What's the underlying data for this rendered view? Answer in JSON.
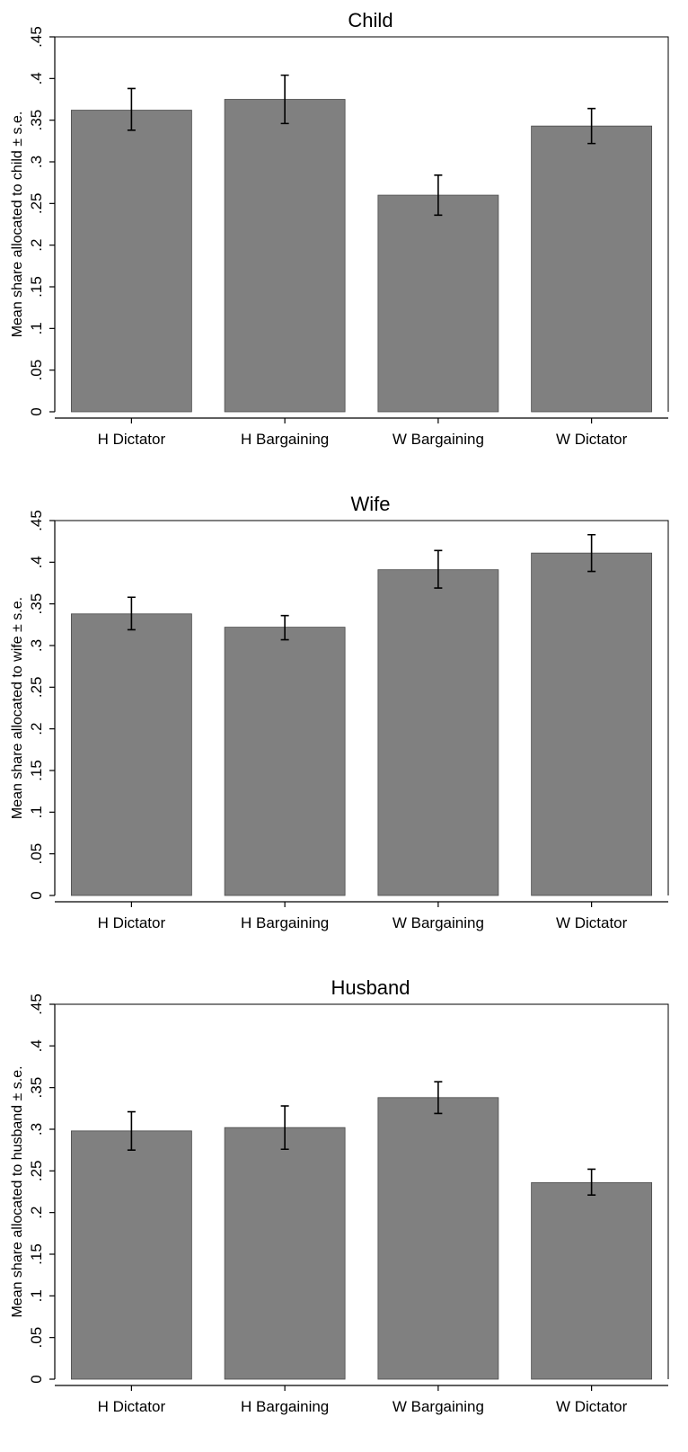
{
  "chart_data": [
    {
      "type": "bar",
      "title": "Child",
      "ylabel": "Mean share allocated to child ± s.e.",
      "categories": [
        "H Dictator",
        "H Bargaining",
        "W Bargaining",
        "W Dictator"
      ],
      "values": [
        0.362,
        0.375,
        0.26,
        0.343
      ],
      "error_low": [
        0.338,
        0.346,
        0.236,
        0.322
      ],
      "error_high": [
        0.388,
        0.404,
        0.284,
        0.364
      ],
      "ylim": [
        0,
        0.45
      ],
      "yticks": [
        0,
        0.05,
        0.1,
        0.15,
        0.2,
        0.25,
        0.3,
        0.35,
        0.4,
        0.45
      ],
      "ytick_labels": [
        "0",
        ".05",
        ".1",
        ".15",
        ".2",
        ".25",
        ".3",
        ".35",
        ".4",
        ".45"
      ],
      "bar_color": "#808080",
      "grid": false
    },
    {
      "type": "bar",
      "title": "Wife",
      "ylabel": "Mean share allocated to wife ± s.e.",
      "categories": [
        "H Dictator",
        "H Bargaining",
        "W Bargaining",
        "W Dictator"
      ],
      "values": [
        0.338,
        0.322,
        0.391,
        0.411
      ],
      "error_low": [
        0.319,
        0.307,
        0.369,
        0.389
      ],
      "error_high": [
        0.358,
        0.336,
        0.414,
        0.433
      ],
      "ylim": [
        0,
        0.45
      ],
      "yticks": [
        0,
        0.05,
        0.1,
        0.15,
        0.2,
        0.25,
        0.3,
        0.35,
        0.4,
        0.45
      ],
      "ytick_labels": [
        "0",
        ".05",
        ".1",
        ".15",
        ".2",
        ".25",
        ".3",
        ".35",
        ".4",
        ".45"
      ],
      "bar_color": "#808080",
      "grid": false
    },
    {
      "type": "bar",
      "title": "Husband",
      "ylabel": "Mean share allocated to husband ± s.e.",
      "categories": [
        "H Dictator",
        "H Bargaining",
        "W Bargaining",
        "W Dictator"
      ],
      "values": [
        0.298,
        0.302,
        0.338,
        0.236
      ],
      "error_low": [
        0.275,
        0.276,
        0.319,
        0.221
      ],
      "error_high": [
        0.321,
        0.328,
        0.357,
        0.252
      ],
      "ylim": [
        0,
        0.45
      ],
      "yticks": [
        0,
        0.05,
        0.1,
        0.15,
        0.2,
        0.25,
        0.3,
        0.35,
        0.4,
        0.45
      ],
      "ytick_labels": [
        "0",
        ".05",
        ".1",
        ".15",
        ".2",
        ".25",
        ".3",
        ".35",
        ".4",
        ".45"
      ],
      "bar_color": "#808080",
      "grid": false
    }
  ]
}
